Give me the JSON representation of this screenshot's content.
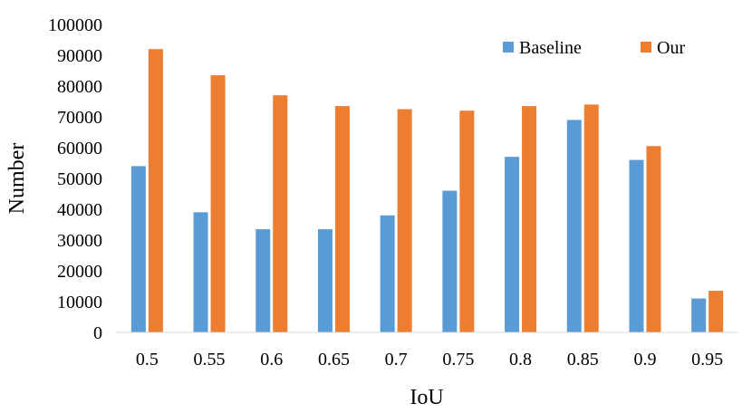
{
  "chart_data": {
    "type": "bar",
    "categories": [
      "0.5",
      "0.55",
      "0.6",
      "0.65",
      "0.7",
      "0.75",
      "0.8",
      "0.85",
      "0.9",
      "0.95"
    ],
    "series": [
      {
        "name": "Baseline",
        "color": "#5b9bd5",
        "values": [
          54000,
          39000,
          33500,
          33500,
          38000,
          46000,
          57000,
          69000,
          56000,
          11000
        ]
      },
      {
        "name": "Our",
        "color": "#ed7d31",
        "values": [
          92000,
          83500,
          77000,
          73500,
          72500,
          72000,
          73500,
          74000,
          60500,
          13500
        ]
      }
    ],
    "y_ticks": [
      "0",
      "10000",
      "20000",
      "30000",
      "40000",
      "50000",
      "60000",
      "70000",
      "80000",
      "90000",
      "100000"
    ],
    "xlabel": "IoU",
    "ylabel": "Number",
    "ylim": [
      0,
      100000
    ],
    "grid": false,
    "legend_position": "top-right"
  }
}
